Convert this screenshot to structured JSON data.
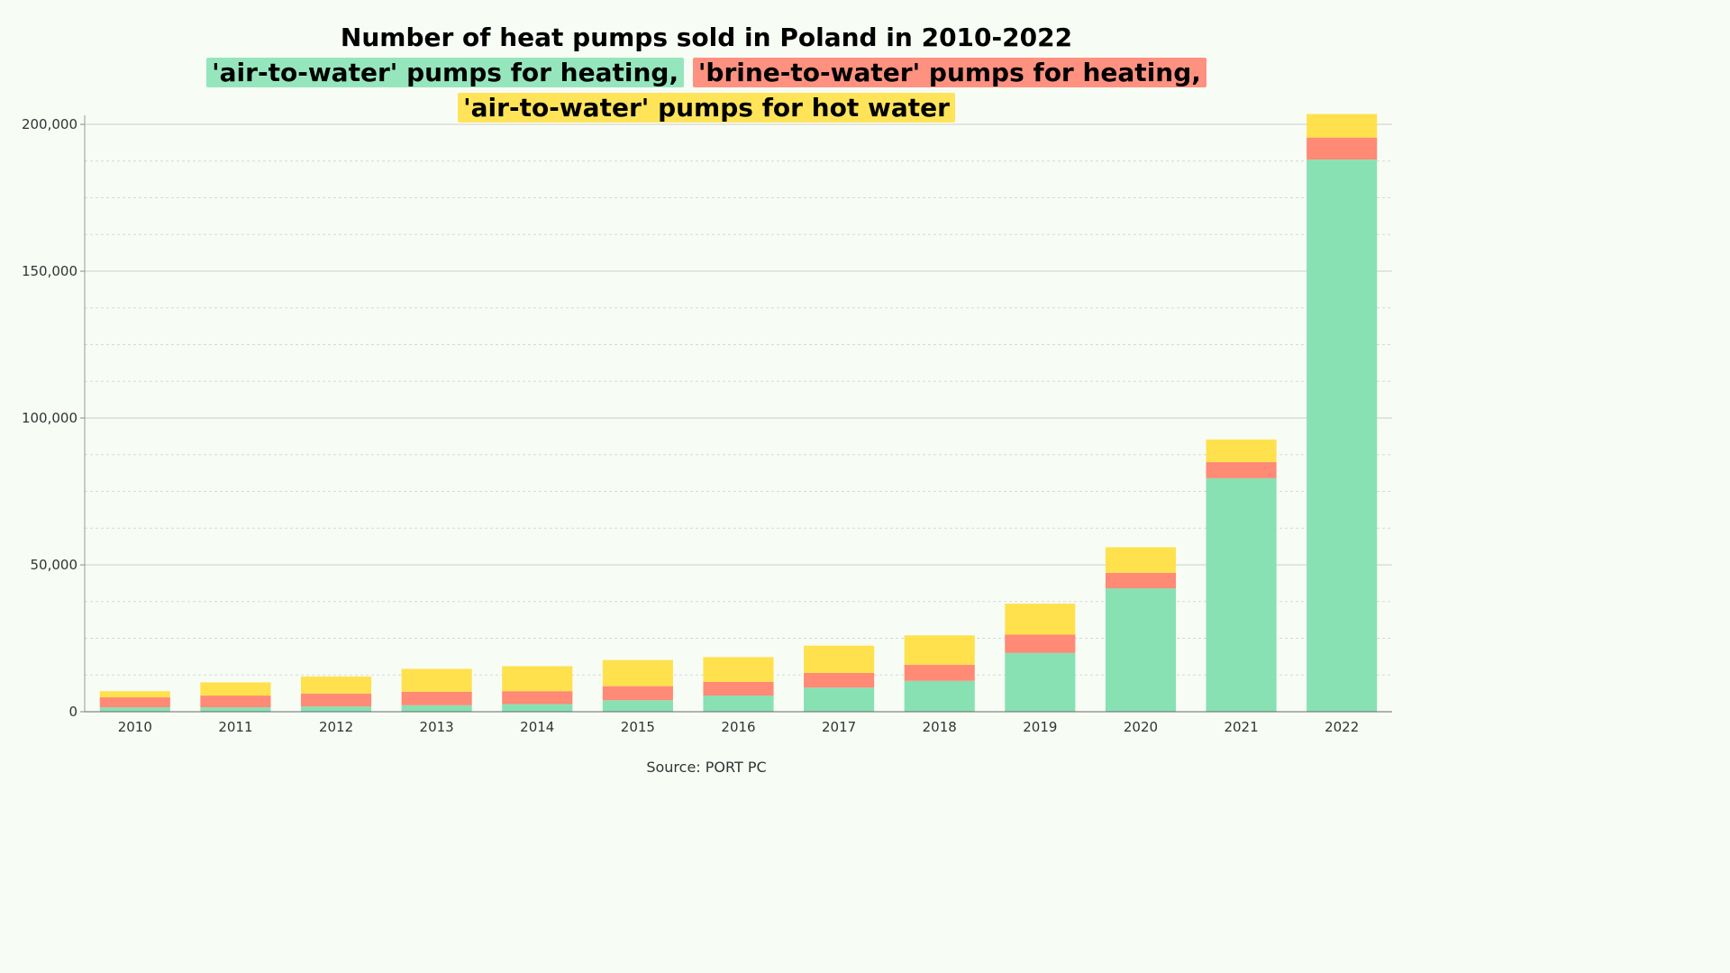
{
  "chart_data": {
    "type": "bar",
    "stacked": true,
    "title": "Number of heat pumps sold in Poland in 2010-2022",
    "subtitle": [
      {
        "text": "'air-to-water' pumps for heating,",
        "series": 0
      },
      {
        "text": "'brine-to-water' pumps for heating,",
        "series": 1
      },
      {
        "text": "'air-to-water' pumps for hot water",
        "series": 2
      }
    ],
    "categories": [
      "2010",
      "2011",
      "2012",
      "2013",
      "2014",
      "2015",
      "2016",
      "2017",
      "2018",
      "2019",
      "2020",
      "2021",
      "2022"
    ],
    "series": [
      {
        "name": "'air-to-water' pumps for heating",
        "color": "#88e1b3",
        "values": [
          1500,
          1500,
          1800,
          2200,
          2600,
          3900,
          5500,
          8200,
          10500,
          20000,
          42000,
          79500,
          188000
        ]
      },
      {
        "name": "'brine-to-water' pumps for heating",
        "color": "#ff8a75",
        "values": [
          3400,
          4000,
          4400,
          4600,
          4400,
          4800,
          4700,
          5000,
          5500,
          6300,
          5300,
          5500,
          7500
        ]
      },
      {
        "name": "'air-to-water' pumps for hot water",
        "color": "#ffe14d",
        "values": [
          2100,
          4500,
          5800,
          7800,
          8500,
          8900,
          8400,
          9300,
          10000,
          10500,
          8700,
          7700,
          8000
        ]
      }
    ],
    "ylim": [
      0,
      200000
    ],
    "y_ticks": [
      "0",
      "50,000",
      "100,000",
      "150,000",
      "200,000"
    ],
    "y_tick_values": [
      0,
      50000,
      100000,
      150000,
      200000
    ],
    "grid": "major solid, minor dashed",
    "xlabel": "",
    "ylabel": "",
    "source": "Source: PORT PC"
  }
}
